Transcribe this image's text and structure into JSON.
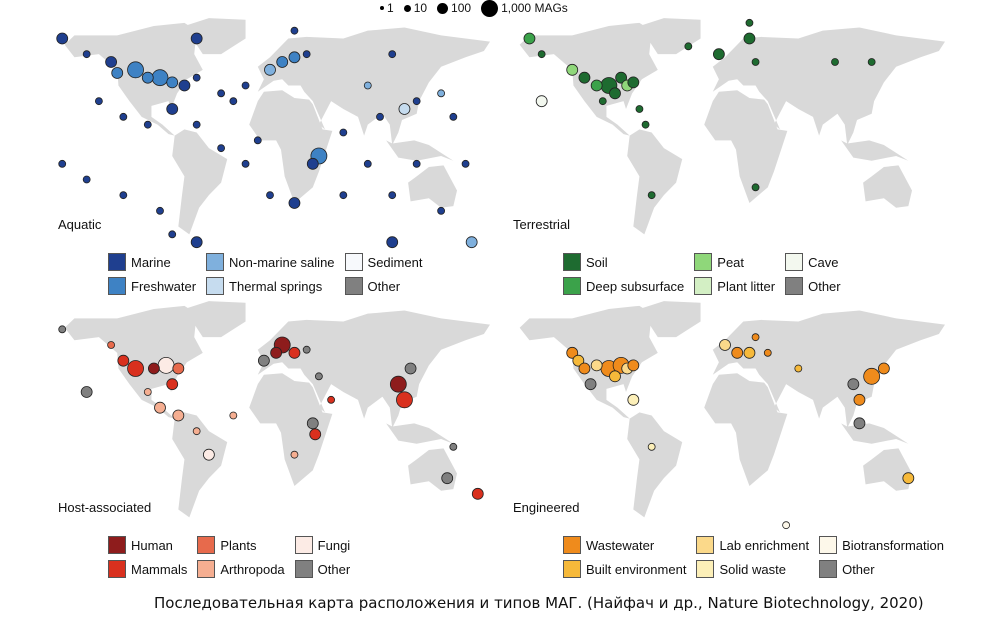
{
  "size_legend": {
    "items": [
      "1",
      "10",
      "100",
      "1,000 MAGs"
    ],
    "values": [
      1,
      10,
      100,
      1000
    ]
  },
  "panels": [
    {
      "title": "Aquatic",
      "legend": [
        {
          "label": "Marine",
          "color": "#1f3f8f"
        },
        {
          "label": "Non-marine saline",
          "color": "#7fb0dd"
        },
        {
          "label": "Sediment",
          "color": "#f7f9fc"
        },
        {
          "label": "Freshwater",
          "color": "#3e82c4"
        },
        {
          "label": "Thermal springs",
          "color": "#c6dcef"
        },
        {
          "label": "Other",
          "color": "#808080"
        }
      ],
      "points": [
        [
          -150,
          60,
          0,
          10
        ],
        [
          -130,
          55,
          0,
          100
        ],
        [
          -125,
          48,
          3,
          100
        ],
        [
          -110,
          50,
          3,
          1000
        ],
        [
          -100,
          45,
          3,
          100
        ],
        [
          -90,
          45,
          3,
          1000
        ],
        [
          -80,
          42,
          3,
          100
        ],
        [
          -70,
          40,
          0,
          100
        ],
        [
          -60,
          45,
          0,
          10
        ],
        [
          -40,
          35,
          0,
          10
        ],
        [
          -30,
          30,
          0,
          10
        ],
        [
          -20,
          40,
          0,
          10
        ],
        [
          0,
          50,
          1,
          100
        ],
        [
          10,
          55,
          3,
          100
        ],
        [
          20,
          58,
          3,
          100
        ],
        [
          30,
          60,
          0,
          10
        ],
        [
          -140,
          30,
          0,
          10
        ],
        [
          -120,
          20,
          0,
          10
        ],
        [
          -100,
          15,
          0,
          10
        ],
        [
          -80,
          25,
          0,
          100
        ],
        [
          -60,
          15,
          0,
          10
        ],
        [
          -40,
          0,
          0,
          10
        ],
        [
          -20,
          -10,
          0,
          10
        ],
        [
          -10,
          5,
          0,
          10
        ],
        [
          40,
          -5,
          3,
          1000
        ],
        [
          35,
          -10,
          0,
          100
        ],
        [
          60,
          10,
          0,
          10
        ],
        [
          80,
          -10,
          0,
          10
        ],
        [
          90,
          20,
          0,
          10
        ],
        [
          110,
          25,
          4,
          100
        ],
        [
          120,
          30,
          0,
          10
        ],
        [
          140,
          35,
          1,
          10
        ],
        [
          150,
          20,
          0,
          10
        ],
        [
          160,
          -10,
          0,
          10
        ],
        [
          -170,
          -10,
          0,
          10
        ],
        [
          -150,
          -20,
          0,
          10
        ],
        [
          -120,
          -30,
          0,
          10
        ],
        [
          -90,
          -40,
          0,
          10
        ],
        [
          -60,
          -60,
          0,
          100
        ],
        [
          -80,
          -55,
          0,
          10
        ],
        [
          0,
          -30,
          0,
          10
        ],
        [
          20,
          -35,
          0,
          100
        ],
        [
          60,
          -30,
          0,
          10
        ],
        [
          100,
          -30,
          0,
          10
        ],
        [
          140,
          -40,
          0,
          10
        ],
        [
          120,
          -10,
          0,
          10
        ],
        [
          -170,
          70,
          0,
          100
        ],
        [
          -60,
          70,
          0,
          100
        ],
        [
          20,
          75,
          0,
          10
        ],
        [
          80,
          40,
          1,
          10
        ],
        [
          100,
          60,
          0,
          10
        ],
        [
          165,
          -60,
          1,
          100
        ],
        [
          100,
          -60,
          0,
          100
        ]
      ]
    },
    {
      "title": "Terrestrial",
      "legend": [
        {
          "label": "Soil",
          "color": "#1e6b30"
        },
        {
          "label": "Peat",
          "color": "#8fd77a"
        },
        {
          "label": "Cave",
          "color": "#f3f8ef"
        },
        {
          "label": "Deep subsurface",
          "color": "#3ba24a"
        },
        {
          "label": "Plant litter",
          "color": "#d3efc4"
        },
        {
          "label": "Other",
          "color": "#808080"
        }
      ],
      "points": [
        [
          -160,
          70,
          3,
          100
        ],
        [
          -150,
          60,
          0,
          10
        ],
        [
          -125,
          50,
          1,
          100
        ],
        [
          -115,
          45,
          0,
          100
        ],
        [
          -105,
          40,
          3,
          100
        ],
        [
          -95,
          40,
          0,
          1000
        ],
        [
          -90,
          35,
          0,
          100
        ],
        [
          -85,
          45,
          0,
          100
        ],
        [
          -80,
          40,
          1,
          100
        ],
        [
          -75,
          42,
          0,
          100
        ],
        [
          -100,
          30,
          0,
          10
        ],
        [
          -70,
          25,
          0,
          10
        ],
        [
          -65,
          15,
          0,
          10
        ],
        [
          -150,
          30,
          2,
          100
        ],
        [
          -60,
          -30,
          0,
          10
        ],
        [
          -5,
          60,
          0,
          100
        ],
        [
          20,
          70,
          0,
          100
        ],
        [
          25,
          55,
          0,
          10
        ],
        [
          90,
          55,
          0,
          10
        ],
        [
          120,
          55,
          0,
          10
        ],
        [
          25,
          -25,
          0,
          10
        ],
        [
          20,
          80,
          0,
          10
        ],
        [
          -30,
          65,
          0,
          10
        ]
      ]
    },
    {
      "title": "Host-associated",
      "legend": [
        {
          "label": "Human",
          "color": "#8e1c1c"
        },
        {
          "label": "Plants",
          "color": "#e76a4c"
        },
        {
          "label": "Fungi",
          "color": "#fcebe5"
        },
        {
          "label": "Mammals",
          "color": "#d9301e"
        },
        {
          "label": "Arthropoda",
          "color": "#f5ae91"
        },
        {
          "label": "Other",
          "color": "#808080"
        }
      ],
      "points": [
        [
          -170,
          65,
          5,
          10
        ],
        [
          -130,
          55,
          1,
          10
        ],
        [
          -120,
          45,
          3,
          100
        ],
        [
          -110,
          40,
          3,
          1000
        ],
        [
          -95,
          40,
          0,
          100
        ],
        [
          -85,
          42,
          2,
          1000
        ],
        [
          -75,
          40,
          1,
          100
        ],
        [
          -80,
          30,
          3,
          100
        ],
        [
          -150,
          25,
          5,
          100
        ],
        [
          -100,
          25,
          4,
          10
        ],
        [
          -90,
          15,
          4,
          100
        ],
        [
          -75,
          10,
          4,
          100
        ],
        [
          -60,
          0,
          4,
          10
        ],
        [
          -50,
          -15,
          2,
          100
        ],
        [
          -30,
          10,
          4,
          10
        ],
        [
          -5,
          45,
          5,
          100
        ],
        [
          5,
          50,
          0,
          100
        ],
        [
          10,
          55,
          0,
          1000
        ],
        [
          20,
          50,
          3,
          100
        ],
        [
          30,
          52,
          5,
          10
        ],
        [
          40,
          35,
          5,
          10
        ],
        [
          50,
          20,
          3,
          10
        ],
        [
          35,
          5,
          5,
          100
        ],
        [
          37,
          -2,
          3,
          100
        ],
        [
          20,
          -15,
          4,
          10
        ],
        [
          105,
          30,
          0,
          1000
        ],
        [
          110,
          20,
          3,
          1000
        ],
        [
          115,
          40,
          5,
          100
        ],
        [
          150,
          -10,
          5,
          10
        ],
        [
          145,
          -30,
          5,
          100
        ],
        [
          170,
          -40,
          3,
          100
        ]
      ]
    },
    {
      "title": "Engineered",
      "legend": [
        {
          "label": "Wastewater",
          "color": "#ef8b1c"
        },
        {
          "label": "Lab enrichment",
          "color": "#fbd98a"
        },
        {
          "label": "Biotransformation",
          "color": "#fdf8ea"
        },
        {
          "label": "Built environment",
          "color": "#f6b93a"
        },
        {
          "label": "Solid waste",
          "color": "#fcefb8"
        },
        {
          "label": "Other",
          "color": "#808080"
        }
      ],
      "points": [
        [
          -125,
          50,
          0,
          100
        ],
        [
          -120,
          45,
          3,
          100
        ],
        [
          -115,
          40,
          0,
          100
        ],
        [
          -105,
          42,
          1,
          100
        ],
        [
          -95,
          40,
          0,
          1000
        ],
        [
          -90,
          35,
          3,
          100
        ],
        [
          -85,
          42,
          0,
          1000
        ],
        [
          -80,
          40,
          1,
          100
        ],
        [
          -75,
          42,
          0,
          100
        ],
        [
          -110,
          30,
          5,
          100
        ],
        [
          -75,
          20,
          4,
          100
        ],
        [
          -60,
          -10,
          4,
          10
        ],
        [
          0,
          55,
          1,
          100
        ],
        [
          10,
          50,
          0,
          100
        ],
        [
          20,
          50,
          3,
          100
        ],
        [
          25,
          60,
          0,
          10
        ],
        [
          35,
          50,
          0,
          10
        ],
        [
          60,
          40,
          3,
          10
        ],
        [
          105,
          30,
          5,
          100
        ],
        [
          110,
          20,
          0,
          100
        ],
        [
          120,
          35,
          0,
          1000
        ],
        [
          130,
          40,
          0,
          100
        ],
        [
          110,
          5,
          5,
          100
        ],
        [
          150,
          -30,
          3,
          100
        ],
        [
          50,
          -60,
          2,
          10
        ]
      ]
    }
  ],
  "caption": "Последовательная карта расположения и типов МАГ. (Найфач и др., Nature Biotechnology, 2020)"
}
